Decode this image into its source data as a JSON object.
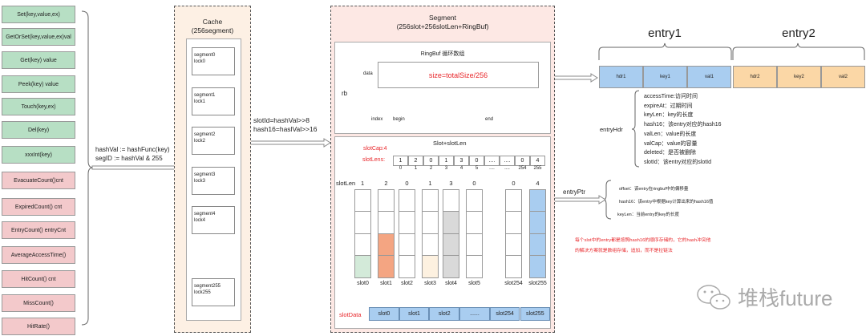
{
  "api": {
    "green": [
      "Set(key,value,ex)",
      "GetOrSet(key,value,ex)val",
      "Get(key) value",
      "Peek(key) value",
      "Touch(key,ex)",
      "Del(key)",
      "xxxInt(key)"
    ],
    "red": [
      "EvacuateCount()cnt",
      "ExpiredCount() cnt",
      "EntryCount() entryCnt",
      "AverageAccessTime()",
      "HitCount() cnt",
      "MissCount()",
      "HitRate()"
    ]
  },
  "hash": {
    "line1": "hashVal := hashFunc(key)",
    "line2": "segID := hashVal & 255"
  },
  "cache": {
    "title": "Cache",
    "subtitle": "(256segment)",
    "segments": [
      [
        "segment0",
        "lock0"
      ],
      [
        "segment1",
        "lock1"
      ],
      [
        "segment2",
        "lock2"
      ],
      [
        "segment3",
        "lock3"
      ],
      [
        "segment4",
        "lock4"
      ],
      [
        "segment255",
        "lock255"
      ]
    ]
  },
  "slot_hash": {
    "line1": "slotId=hashVal>>8",
    "line2": "hash16=haslVal>>16"
  },
  "segment": {
    "title": "Segment",
    "subtitle": "(256slot+256slotLen+RingBuf)",
    "ringbuf": {
      "title": "RingBuf 循环数组",
      "data_label": "data",
      "size": "size=totalSize/256",
      "rb": "rb",
      "pointers": [
        "index",
        "begin",
        "end"
      ]
    },
    "slot": {
      "title": "Slot+slotLen",
      "slot_cap": "slotCap:4",
      "slot_lens_label": "slotLens:",
      "slot_lens": [
        "1",
        "2",
        "0",
        "1",
        "3",
        "0",
        "....",
        "....",
        "0",
        "4"
      ],
      "slot_lens_idx": [
        "0",
        "1",
        "2",
        "3",
        "4",
        "5",
        "....",
        "....",
        "254",
        "255"
      ],
      "slotlen_label": "slotLen",
      "columns": [
        {
          "name": "slot0",
          "len": "1",
          "filled": 1,
          "color": "#d3ead9"
        },
        {
          "name": "slot1",
          "len": "2",
          "filled": 2,
          "color": "#f4a582"
        },
        {
          "name": "slot2",
          "len": "0",
          "filled": 0,
          "color": "#fff"
        },
        {
          "name": "slot3",
          "len": "1",
          "filled": 1,
          "color": "#fdf1e0"
        },
        {
          "name": "slot4",
          "len": "3",
          "filled": 3,
          "color": "#d9d9d9"
        },
        {
          "name": "slot5",
          "len": "0",
          "filled": 0,
          "color": "#fff"
        },
        {
          "name": "slot254",
          "len": "0",
          "filled": 0,
          "color": "#fff"
        },
        {
          "name": "slot255",
          "len": "4",
          "filled": 4,
          "color": "#a9cdf0"
        }
      ],
      "slot_data_label": "slotData",
      "slot_data": [
        "slot0",
        "slot1",
        "slot2",
        "......",
        "slot254",
        "slot255"
      ]
    }
  },
  "entries": {
    "entry1": {
      "label": "entry1",
      "cells": [
        "hdr1",
        "key1",
        "val1"
      ],
      "color": "#a9cdf0"
    },
    "entry2": {
      "label": "entry2",
      "cells": [
        "hdr2",
        "key2",
        "val2"
      ],
      "color": "#fbd7a6"
    }
  },
  "entry_hdr": {
    "label": "entryHdr",
    "fields": [
      "accessTime:访问时间",
      "expireAt：过期时间",
      "keyLen：key的长度",
      "hash16：该entry对应的hash16",
      "valLen：value的长度",
      "valCap：value的容量",
      "deleted：是否被删除",
      "slotId：该entry对应的slotId"
    ]
  },
  "entry_ptr": {
    "label": "entryPtr",
    "fields": [
      "offset：该entry在ringbuf中的偏移量",
      "hash16：该entry中根据key计算出来的hash16值",
      "keyLen：当前entry的key的长度"
    ]
  },
  "note": {
    "line1": "每个slot中的entry都是按照hash16的顺序存储的，它的hash冲突他",
    "line2": "的解决方案就是数组存储，追加，而不是拉链法"
  },
  "watermark": "堆栈future"
}
